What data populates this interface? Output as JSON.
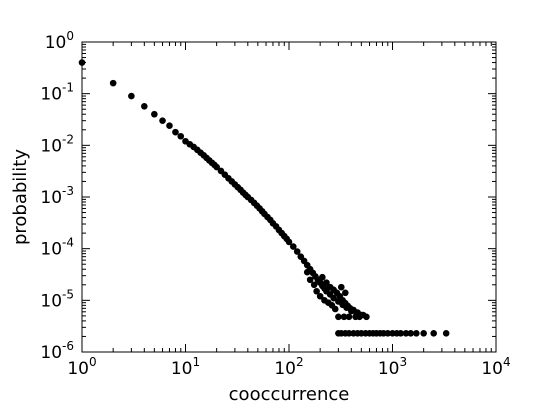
{
  "chart_data": {
    "type": "scatter",
    "title": "",
    "xlabel": "cooccurrence",
    "ylabel": "probability",
    "xscale": "log",
    "yscale": "log",
    "xlim": [
      1,
      10000
    ],
    "ylim": [
      1e-06,
      1
    ],
    "x_ticks": [
      {
        "base": "10",
        "exp": "0"
      },
      {
        "base": "10",
        "exp": "1"
      },
      {
        "base": "10",
        "exp": "2"
      },
      {
        "base": "10",
        "exp": "3"
      },
      {
        "base": "10",
        "exp": "4"
      }
    ],
    "y_ticks": [
      {
        "base": "10",
        "exp": "-6"
      },
      {
        "base": "10",
        "exp": "-5"
      },
      {
        "base": "10",
        "exp": "-4"
      },
      {
        "base": "10",
        "exp": "-3"
      },
      {
        "base": "10",
        "exp": "-2"
      },
      {
        "base": "10",
        "exp": "-1"
      },
      {
        "base": "10",
        "exp": "0"
      }
    ],
    "grid": false,
    "marker_color": "#000000",
    "series": [
      {
        "points": [
          [
            1,
            0.4
          ],
          [
            2,
            0.16
          ],
          [
            3,
            0.09
          ],
          [
            4,
            0.057
          ],
          [
            5,
            0.04
          ],
          [
            6,
            0.03
          ],
          [
            7,
            0.024
          ],
          [
            8,
            0.018
          ],
          [
            9,
            0.015
          ],
          [
            10,
            0.012
          ],
          [
            11,
            0.0105
          ],
          [
            12,
            0.0093
          ],
          [
            13,
            0.0082
          ],
          [
            14,
            0.0072
          ],
          [
            15,
            0.0064
          ],
          [
            16,
            0.0057
          ],
          [
            17,
            0.0051
          ],
          [
            18,
            0.0046
          ],
          [
            19,
            0.0042
          ],
          [
            20,
            0.0038
          ],
          [
            22,
            0.0032
          ],
          [
            24,
            0.0027
          ],
          [
            26,
            0.0023
          ],
          [
            28,
            0.002
          ],
          [
            30,
            0.00175
          ],
          [
            32,
            0.00155
          ],
          [
            34,
            0.00138
          ],
          [
            36,
            0.00122
          ],
          [
            38,
            0.0011
          ],
          [
            40,
            0.001
          ],
          [
            43,
            0.00088
          ],
          [
            46,
            0.00077
          ],
          [
            49,
            0.00068
          ],
          [
            52,
            0.0006
          ],
          [
            55,
            0.00053
          ],
          [
            58,
            0.00047
          ],
          [
            62,
            0.00041
          ],
          [
            66,
            0.00036
          ],
          [
            70,
            0.00031
          ],
          [
            75,
            0.00027
          ],
          [
            80,
            0.00023
          ],
          [
            85,
            0.0002
          ],
          [
            90,
            0.000175
          ],
          [
            95,
            0.000155
          ],
          [
            100,
            0.000135
          ],
          [
            110,
            0.00011
          ],
          [
            120,
            8.8e-05
          ],
          [
            130,
            7e-05
          ],
          [
            140,
            5.8e-05
          ],
          [
            150,
            4.8e-05
          ],
          [
            160,
            4e-05
          ],
          [
            170,
            3.4e-05
          ],
          [
            180,
            2.9e-05
          ],
          [
            190,
            2.5e-05
          ],
          [
            200,
            2.2e-05
          ],
          [
            210,
            1.9e-05
          ],
          [
            220,
            1.7e-05
          ],
          [
            230,
            1.5e-05
          ],
          [
            250,
            1.3e-05
          ],
          [
            270,
            1.1e-05
          ],
          [
            300,
            9.5e-06
          ],
          [
            330,
            8.2e-06
          ],
          [
            360,
            7.2e-06
          ],
          [
            400,
            6.2e-06
          ],
          [
            450,
            5.5e-06
          ],
          [
            500,
            5.2e-06
          ],
          [
            150,
            3.5e-05
          ],
          [
            160,
            2.5e-05
          ],
          [
            175,
            2e-05
          ],
          [
            185,
            1.5e-05
          ],
          [
            200,
            1.2e-05
          ],
          [
            220,
            1e-05
          ],
          [
            240,
            9e-06
          ],
          [
            260,
            8e-06
          ],
          [
            280,
            6.8e-06
          ],
          [
            210,
            2.8e-05
          ],
          [
            230,
            2.2e-05
          ],
          [
            250,
            1.8e-05
          ],
          [
            270,
            1.6e-05
          ],
          [
            290,
            1.4e-05
          ],
          [
            310,
            1.2e-05
          ],
          [
            330,
            1e-05
          ],
          [
            350,
            8.8e-06
          ],
          [
            370,
            7.8e-06
          ],
          [
            390,
            7e-06
          ],
          [
            420,
            6.5e-06
          ],
          [
            460,
            5.8e-06
          ],
          [
            520,
            5.2e-06
          ],
          [
            560,
            4.8e-06
          ],
          [
            300,
            4.8e-06
          ],
          [
            340,
            4.8e-06
          ],
          [
            380,
            4.8e-06
          ],
          [
            440,
            4.8e-06
          ],
          [
            480,
            4.8e-06
          ],
          [
            320,
            1.8e-05
          ],
          [
            350,
            1.4e-05
          ],
          [
            300,
            2.3e-06
          ],
          [
            320,
            2.3e-06
          ],
          [
            350,
            2.3e-06
          ],
          [
            380,
            2.3e-06
          ],
          [
            420,
            2.3e-06
          ],
          [
            460,
            2.3e-06
          ],
          [
            500,
            2.3e-06
          ],
          [
            550,
            2.3e-06
          ],
          [
            600,
            2.3e-06
          ],
          [
            650,
            2.3e-06
          ],
          [
            700,
            2.3e-06
          ],
          [
            760,
            2.3e-06
          ],
          [
            820,
            2.3e-06
          ],
          [
            900,
            2.3e-06
          ],
          [
            1000,
            2.3e-06
          ],
          [
            1100,
            2.3e-06
          ],
          [
            1200,
            2.3e-06
          ],
          [
            1350,
            2.3e-06
          ],
          [
            1500,
            2.3e-06
          ],
          [
            1700,
            2.3e-06
          ],
          [
            2000,
            2.3e-06
          ],
          [
            2500,
            2.3e-06
          ],
          [
            3300,
            2.3e-06
          ]
        ]
      }
    ]
  }
}
